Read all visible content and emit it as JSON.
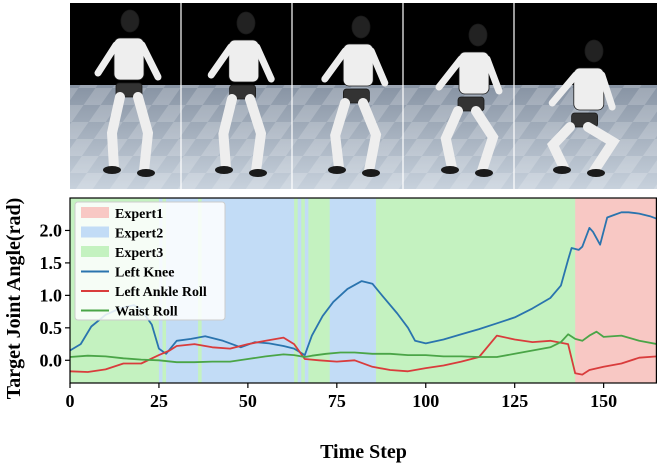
{
  "colors": {
    "expert1": "#f8c8c4",
    "expert2": "#c2dcf6",
    "expert3": "#c4f2c0",
    "left_knee": "#2a74ae",
    "left_ankle_roll": "#d93c3c",
    "waist_roll": "#4aa547",
    "sky": "#000000",
    "floor": "#aab8c8",
    "robot": "#eeeeee"
  },
  "chart_data": {
    "type": "line",
    "xlabel": "Time Step",
    "ylabel": "Target Joint Angle(rad)",
    "xlim": [
      0,
      165
    ],
    "ylim": [
      -0.35,
      2.5
    ],
    "xticks": [
      "0",
      "25",
      "50",
      "75",
      "100",
      "125",
      "150"
    ],
    "yticks": [
      "0.0",
      "0.5",
      "1.0",
      "1.5",
      "2.0"
    ],
    "grid": false,
    "legend": {
      "placement": "top-left",
      "entries": [
        "Expert1",
        "Expert2",
        "Expert3",
        "Left Knee",
        "Left Ankle Roll",
        "Waist Roll"
      ]
    },
    "expert_segments": [
      {
        "expert": "Expert3",
        "start": 0,
        "end": 25
      },
      {
        "expert": "Expert2",
        "start": 25,
        "end": 26
      },
      {
        "expert": "Expert3",
        "start": 26,
        "end": 27
      },
      {
        "expert": "Expert2",
        "start": 27,
        "end": 36
      },
      {
        "expert": "Expert3",
        "start": 36,
        "end": 37
      },
      {
        "expert": "Expert2",
        "start": 37,
        "end": 63
      },
      {
        "expert": "Expert3",
        "start": 63,
        "end": 64
      },
      {
        "expert": "Expert2",
        "start": 64,
        "end": 65
      },
      {
        "expert": "Expert3",
        "start": 65,
        "end": 66
      },
      {
        "expert": "Expert2",
        "start": 66,
        "end": 67
      },
      {
        "expert": "Expert3",
        "start": 67,
        "end": 73
      },
      {
        "expert": "Expert2",
        "start": 73,
        "end": 86
      },
      {
        "expert": "Expert3",
        "start": 86,
        "end": 142
      },
      {
        "expert": "Expert1",
        "start": 142,
        "end": 165
      }
    ],
    "series": [
      {
        "name": "Left Knee",
        "x": [
          0,
          3,
          6,
          10,
          14,
          18,
          20,
          23,
          25,
          27,
          30,
          34,
          38,
          43,
          48,
          52,
          56,
          60,
          63,
          66,
          68,
          71,
          74,
          78,
          82,
          85,
          88,
          92,
          95,
          97,
          100,
          105,
          110,
          115,
          120,
          125,
          130,
          135,
          138,
          140,
          141,
          143,
          144,
          146,
          147,
          149,
          151,
          153,
          155,
          157,
          160,
          163,
          165
        ],
        "y": [
          0.15,
          0.25,
          0.52,
          0.7,
          0.8,
          0.85,
          0.78,
          0.55,
          0.18,
          0.1,
          0.3,
          0.33,
          0.37,
          0.3,
          0.2,
          0.28,
          0.26,
          0.22,
          0.18,
          0.08,
          0.38,
          0.68,
          0.9,
          1.1,
          1.22,
          1.18,
          0.98,
          0.72,
          0.5,
          0.3,
          0.26,
          0.32,
          0.4,
          0.48,
          0.57,
          0.66,
          0.8,
          0.96,
          1.15,
          1.55,
          1.73,
          1.7,
          1.75,
          2.04,
          1.98,
          1.78,
          2.2,
          2.24,
          2.28,
          2.28,
          2.26,
          2.22,
          2.18
        ]
      },
      {
        "name": "Left Ankle Roll",
        "x": [
          0,
          5,
          10,
          15,
          20,
          25,
          28,
          30,
          35,
          40,
          45,
          50,
          55,
          60,
          63,
          66,
          70,
          75,
          80,
          85,
          90,
          95,
          100,
          105,
          110,
          115,
          120,
          125,
          130,
          135,
          140,
          142,
          144,
          146,
          150,
          155,
          160,
          165
        ],
        "y": [
          -0.17,
          -0.18,
          -0.14,
          -0.05,
          -0.05,
          0.08,
          0.15,
          0.22,
          0.25,
          0.2,
          0.18,
          0.25,
          0.3,
          0.35,
          0.25,
          0.02,
          0.0,
          -0.02,
          0.0,
          -0.1,
          -0.15,
          -0.17,
          -0.12,
          -0.08,
          -0.02,
          0.05,
          0.38,
          0.32,
          0.28,
          0.3,
          0.25,
          -0.2,
          -0.22,
          -0.15,
          -0.1,
          -0.05,
          0.04,
          0.06
        ]
      },
      {
        "name": "Waist Roll",
        "x": [
          0,
          5,
          10,
          15,
          20,
          25,
          30,
          35,
          40,
          45,
          50,
          55,
          60,
          63,
          66,
          68,
          72,
          76,
          80,
          85,
          90,
          95,
          100,
          105,
          110,
          115,
          120,
          125,
          130,
          135,
          138,
          140,
          142,
          144,
          146,
          148,
          150,
          155,
          160,
          165
        ],
        "y": [
          0.05,
          0.07,
          0.06,
          0.03,
          0.01,
          0.0,
          -0.03,
          -0.03,
          -0.02,
          -0.02,
          0.02,
          0.06,
          0.09,
          0.08,
          0.05,
          0.07,
          0.1,
          0.12,
          0.12,
          0.1,
          0.1,
          0.08,
          0.08,
          0.06,
          0.06,
          0.05,
          0.05,
          0.1,
          0.15,
          0.2,
          0.28,
          0.4,
          0.33,
          0.3,
          0.38,
          0.44,
          0.36,
          0.38,
          0.3,
          0.25
        ]
      }
    ]
  }
}
